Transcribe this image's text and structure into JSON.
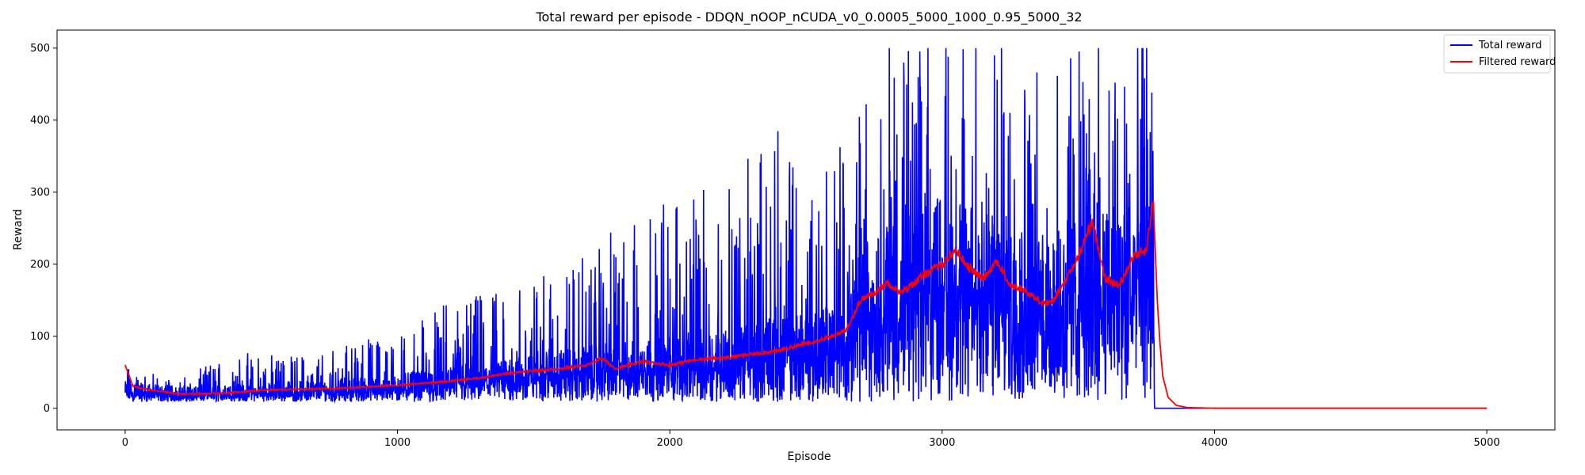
{
  "chart_data": {
    "type": "line",
    "title": "Total reward per episode - DDQN_nOOP_nCUDA_v0_0.0005_5000_1000_0.95_5000_32",
    "xlabel": "Episode",
    "ylabel": "Reward",
    "xlim": [
      -250,
      5250
    ],
    "ylim": [
      -30,
      525
    ],
    "xticks": [
      0,
      1000,
      2000,
      3000,
      4000,
      5000
    ],
    "yticks": [
      0,
      100,
      200,
      300,
      400,
      500
    ],
    "grid": false,
    "legend_position": "top-right",
    "series": [
      {
        "name": "Total reward",
        "color": "#0000ff",
        "note_generation": "noisy per-episode reward; envelope described by anchors",
        "x": [
          0,
          200,
          400,
          600,
          800,
          1000,
          1200,
          1400,
          1600,
          1800,
          2000,
          2200,
          2400,
          2600,
          2660,
          2700,
          2800,
          2900,
          3000,
          3100,
          3200,
          3300,
          3400,
          3500,
          3600,
          3700,
          3775,
          3780,
          5000
        ],
        "mean": [
          25,
          20,
          22,
          25,
          28,
          32,
          38,
          45,
          55,
          62,
          68,
          75,
          85,
          95,
          100,
          150,
          165,
          185,
          200,
          190,
          175,
          165,
          160,
          190,
          185,
          200,
          220,
          0,
          0
        ],
        "max": [
          60,
          40,
          80,
          75,
          90,
          110,
          150,
          170,
          190,
          250,
          300,
          310,
          400,
          350,
          420,
          480,
          500,
          500,
          500,
          500,
          500,
          500,
          450,
          500,
          500,
          500,
          500,
          0,
          0
        ]
      },
      {
        "name": "Filtered reward",
        "color": "#ff0000",
        "x": [
          0,
          30,
          100,
          200,
          300,
          400,
          500,
          600,
          700,
          800,
          900,
          1000,
          1100,
          1200,
          1300,
          1400,
          1500,
          1600,
          1700,
          1750,
          1800,
          1900,
          2000,
          2100,
          2200,
          2300,
          2400,
          2500,
          2600,
          2650,
          2700,
          2750,
          2800,
          2850,
          2900,
          2950,
          3000,
          3050,
          3100,
          3150,
          3200,
          3250,
          3300,
          3350,
          3400,
          3450,
          3500,
          3550,
          3600,
          3650,
          3700,
          3750,
          3775,
          3790,
          3800,
          3810,
          3830,
          3860,
          3900,
          4000,
          5000
        ],
        "y": [
          60,
          30,
          25,
          20,
          20,
          22,
          25,
          26,
          27,
          28,
          30,
          32,
          35,
          38,
          42,
          48,
          52,
          55,
          60,
          70,
          55,
          65,
          60,
          68,
          70,
          75,
          80,
          90,
          100,
          110,
          150,
          160,
          175,
          160,
          175,
          190,
          200,
          220,
          195,
          180,
          205,
          170,
          165,
          150,
          145,
          175,
          210,
          260,
          180,
          170,
          210,
          220,
          290,
          150,
          90,
          45,
          15,
          4,
          1,
          0,
          0
        ]
      }
    ]
  }
}
